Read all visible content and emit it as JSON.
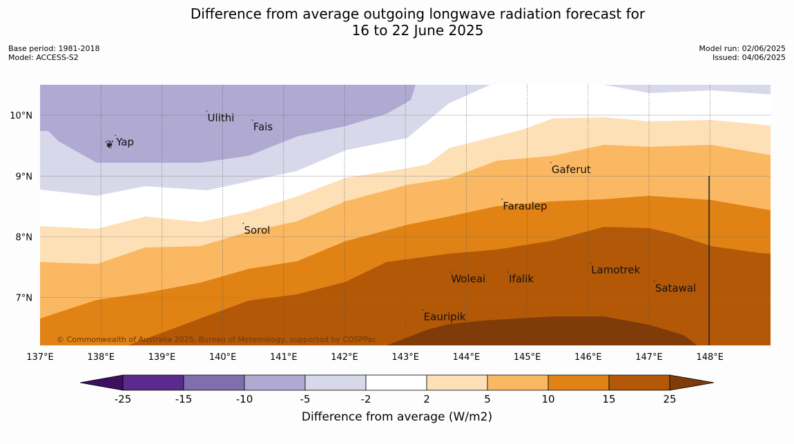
{
  "title_line1": "Difference from average outgoing longwave radiation forecast for",
  "title_line2": "16 to 22 June 2025",
  "meta": {
    "base_period": "Base period: 1981-2018",
    "model": "Model: ACCESS-S2",
    "model_run": "Model run: 02/06/2025",
    "issued": "Issued: 04/06/2025"
  },
  "map": {
    "lon_range": [
      137,
      149
    ],
    "lat_range": [
      6.2,
      10.5
    ],
    "lon_ticks": [
      "137°E",
      "138°E",
      "139°E",
      "140°E",
      "141°E",
      "142°E",
      "143°E",
      "144°E",
      "145°E",
      "146°E",
      "147°E",
      "148°E"
    ],
    "lat_ticks": [
      "10°N",
      "9°N",
      "8°N",
      "7°N"
    ],
    "places": [
      {
        "name": "Ulithi",
        "lon": 139.75,
        "lat": 9.9
      },
      {
        "name": "Fais",
        "lon": 140.5,
        "lat": 9.75
      },
      {
        "name": "Yap",
        "lon": 138.25,
        "lat": 9.5
      },
      {
        "name": "Gaferut",
        "lon": 145.4,
        "lat": 9.05
      },
      {
        "name": "Faraulep",
        "lon": 144.6,
        "lat": 8.45
      },
      {
        "name": "Sorol",
        "lon": 140.35,
        "lat": 8.05
      },
      {
        "name": "Woleai",
        "lon": 143.75,
        "lat": 7.25
      },
      {
        "name": "Ifalik",
        "lon": 144.7,
        "lat": 7.25
      },
      {
        "name": "Lamotrek",
        "lon": 146.05,
        "lat": 7.4
      },
      {
        "name": "Satawal",
        "lon": 147.1,
        "lat": 7.1
      },
      {
        "name": "Eauripik",
        "lon": 143.3,
        "lat": 6.63
      }
    ],
    "copyright": "© Commonwealth of Australia 2025, Bureau of Meteorology, supported by COSPPac"
  },
  "colorbar": {
    "label": "Difference from average (W/m2)",
    "ticks": [
      "-25",
      "-15",
      "-10",
      "-5",
      "-2",
      "2",
      "5",
      "10",
      "15",
      "25"
    ],
    "colors": [
      "#3d0f5e",
      "#5a2a8c",
      "#7f6fad",
      "#b0a9d2",
      "#d8d8eb",
      "#ffffff",
      "#fee0b6",
      "#fbb862",
      "#e08214",
      "#b35806",
      "#7f3b08"
    ]
  }
}
